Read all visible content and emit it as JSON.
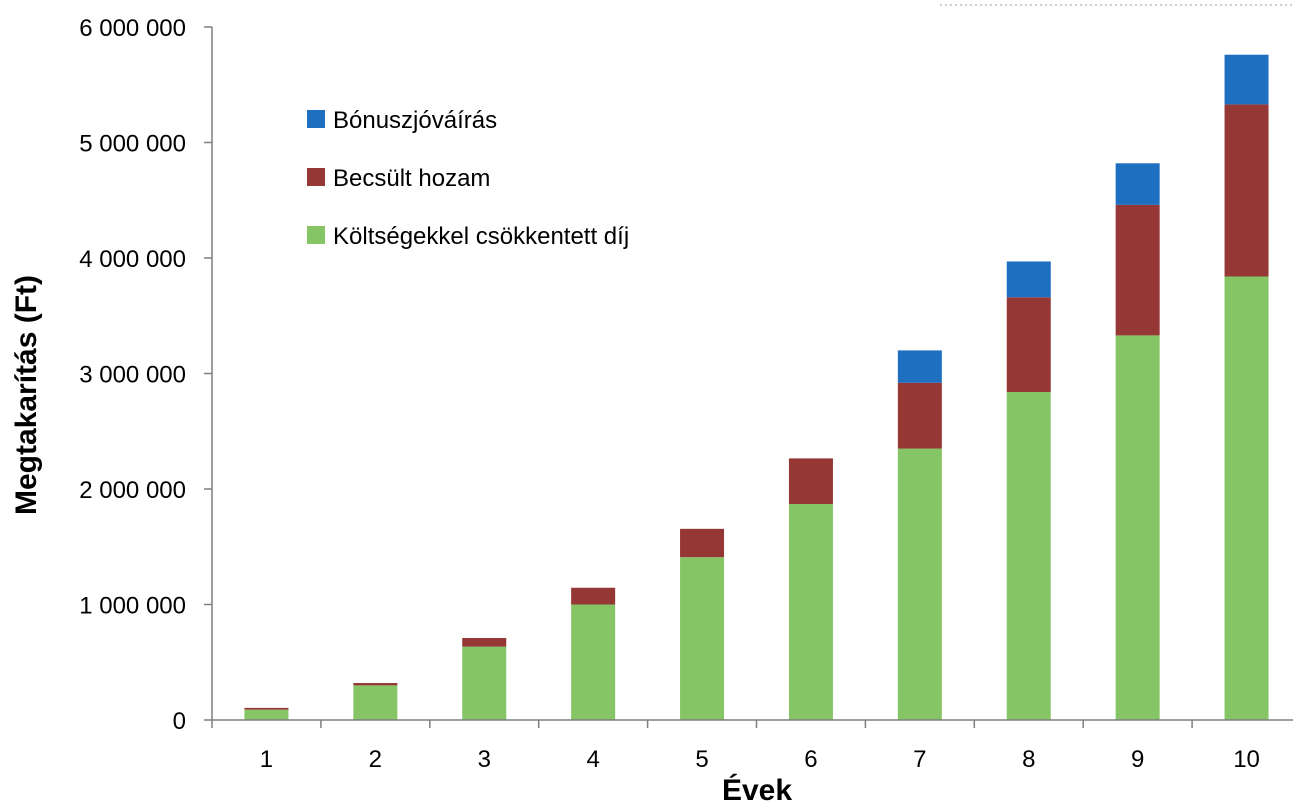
{
  "chart_data": {
    "type": "bar",
    "stacked": true,
    "categories": [
      "1",
      "2",
      "3",
      "4",
      "5",
      "6",
      "7",
      "8",
      "9",
      "10"
    ],
    "series": [
      {
        "name": "Költségekkel csökkentett díj",
        "color": "#86c566",
        "values": [
          90000,
          300000,
          635000,
          1000000,
          1410000,
          1870000,
          2350000,
          2840000,
          3330000,
          3840000
        ]
      },
      {
        "name": "Becsült hozam",
        "color": "#953735",
        "values": [
          15000,
          20000,
          75000,
          145000,
          245000,
          395000,
          570000,
          820000,
          1130000,
          1490000
        ]
      },
      {
        "name": "Bónuszjóváírás",
        "color": "#1f6fc1",
        "values": [
          0,
          0,
          0,
          0,
          0,
          0,
          280000,
          310000,
          360000,
          430000
        ]
      }
    ],
    "legend": {
      "placement": "top-left",
      "order": [
        "Bónuszjóváírás",
        "Becsült hozam",
        "Költségekkel csökkentett díj"
      ]
    },
    "xlabel": "Évek",
    "ylabel": "Megtakarítás (Ft)",
    "ylim": [
      0,
      6000000
    ],
    "yticks": [
      0,
      1000000,
      2000000,
      3000000,
      4000000,
      5000000,
      6000000
    ],
    "ytick_labels": [
      "0",
      "1 000 000",
      "2 000 000",
      "3 000 000",
      "4 000 000",
      "5 000 000",
      "6 000 000"
    ],
    "grid": false
  }
}
